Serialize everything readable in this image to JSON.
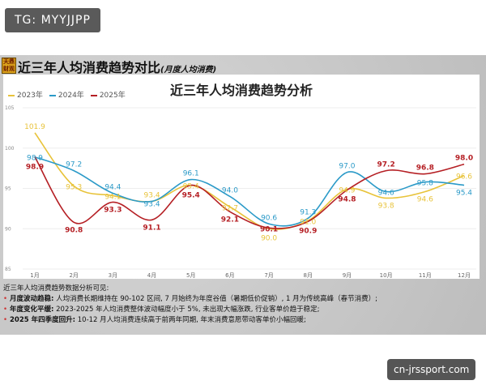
{
  "watermark_top": "TG: MYYJJPP",
  "watermark_bottom": "cn-jrssport.com",
  "header": {
    "logo_text": "天鼎财观",
    "title": "近三年人均消费趋势对比",
    "subtitle": "(月度人均消费)"
  },
  "notes": {
    "intro": "近三年人均消费趋势数据分析可见:",
    "items": [
      {
        "label": "月度波动趋稳:",
        "text": "人均消费长期维持在 90-102 区间, 7 月始终为年度谷值（暑期低价促销）, 1 月为传统高峰（春节消费）;"
      },
      {
        "label": "年度变化平缓:",
        "text": "2023-2025 年人均消费整体波动幅度小于 5%, 未出现大幅涨跌, 行业客单价趋于稳定;"
      },
      {
        "label": "2025 年四季度回升:",
        "text": "10-12 月人均消费连续高于前两年同期, 年末消费意愿带动客单价小幅回暖;"
      }
    ]
  },
  "chart_data": {
    "type": "line",
    "title": "近三年人均消费趋势分析",
    "categories": [
      "1月",
      "2月",
      "3月",
      "4月",
      "5月",
      "6月",
      "7月",
      "8月",
      "9月",
      "10月",
      "11月",
      "12月"
    ],
    "ylim": [
      85,
      105
    ],
    "yticks": [
      85,
      90,
      95,
      100,
      105
    ],
    "grid": true,
    "legend": "top-left",
    "series": [
      {
        "name": "2023年",
        "color": "#e8c33a",
        "values": [
          101.9,
          95.3,
          94.1,
          93.4,
          95.4,
          92.7,
          90.0,
          91.0,
          94.9,
          93.8,
          94.6,
          96.6
        ]
      },
      {
        "name": "2024年",
        "color": "#2b9ac8",
        "values": [
          98.9,
          97.2,
          94.4,
          93.4,
          96.1,
          94.0,
          90.6,
          91.3,
          97.0,
          94.6,
          95.8,
          95.4
        ]
      },
      {
        "name": "2025年",
        "color": "#b51f24",
        "values": [
          98.9,
          90.8,
          93.3,
          91.1,
          95.4,
          92.1,
          90.1,
          90.9,
          94.8,
          97.2,
          96.8,
          98.0
        ]
      }
    ]
  }
}
